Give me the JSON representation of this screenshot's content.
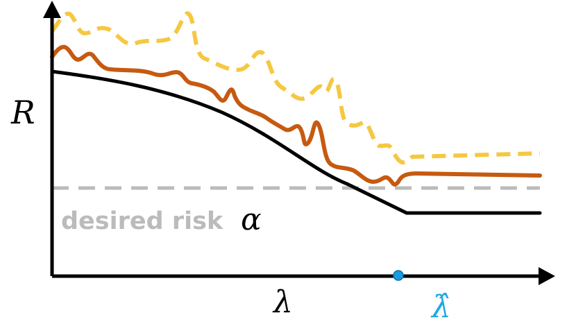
{
  "axes": {
    "y_label": "R",
    "x_label": "λ"
  },
  "threshold": {
    "text": "desired risk",
    "symbol": "α"
  },
  "marker": {
    "label": "λ̂"
  },
  "colors": {
    "axis": "#000000",
    "true_risk": "#000000",
    "empirical_risk": "#C65A10",
    "upper_bound": "#F5C842",
    "threshold": "#BBBBBB",
    "marker": "#1A9BE0",
    "marker_label": "#1AA7E6"
  }
}
